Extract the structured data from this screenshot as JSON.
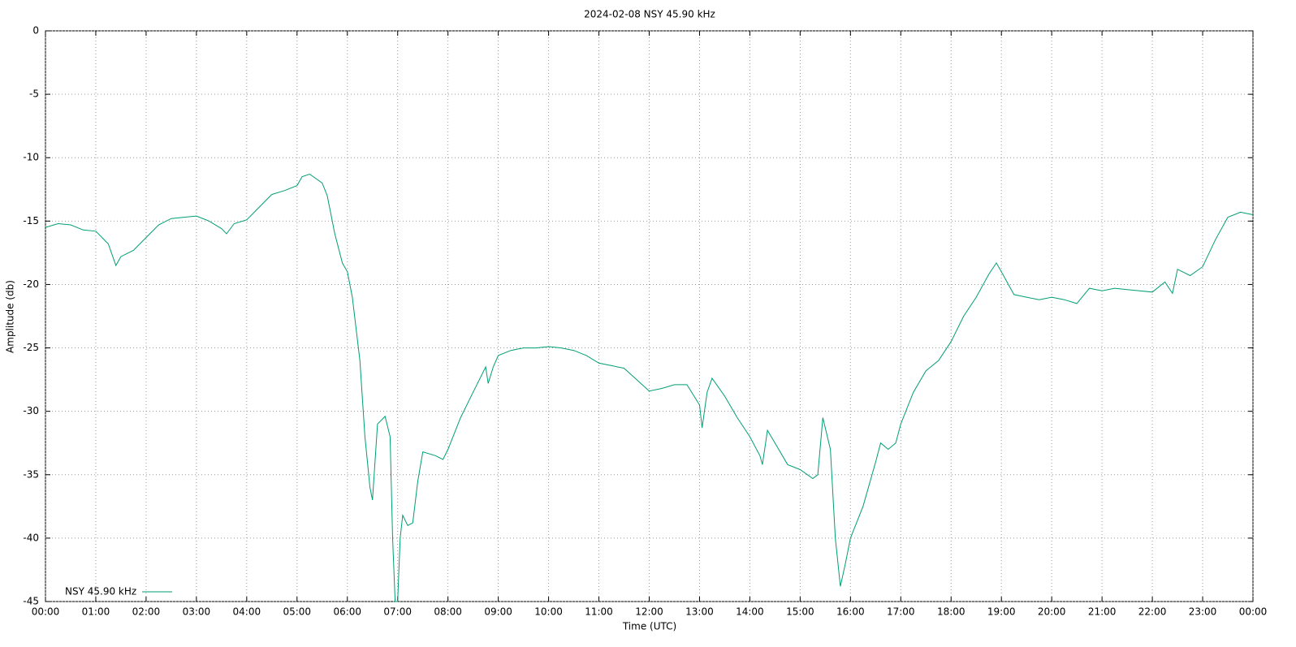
{
  "chart_data": {
    "type": "line",
    "title": "2024-02-08 NSY 45.90 kHz",
    "x_label": "Time (UTC)",
    "y_label": "Amplitude (db)",
    "x": [
      0,
      0.25,
      0.5,
      0.75,
      1.0,
      1.25,
      1.4,
      1.5,
      1.75,
      2.0,
      2.25,
      2.5,
      2.75,
      3.0,
      3.25,
      3.5,
      3.6,
      3.75,
      4.0,
      4.25,
      4.5,
      4.75,
      5.0,
      5.1,
      5.25,
      5.5,
      5.6,
      5.75,
      5.9,
      6.0,
      6.1,
      6.25,
      6.35,
      6.45,
      6.5,
      6.6,
      6.75,
      6.85,
      6.9,
      6.95,
      7.0,
      7.05,
      7.1,
      7.2,
      7.3,
      7.4,
      7.5,
      7.75,
      7.9,
      8.0,
      8.25,
      8.5,
      8.75,
      8.8,
      8.9,
      9.0,
      9.25,
      9.5,
      9.75,
      10.0,
      10.25,
      10.5,
      10.75,
      11.0,
      11.25,
      11.5,
      11.75,
      12.0,
      12.25,
      12.5,
      12.75,
      13.0,
      13.05,
      13.15,
      13.25,
      13.5,
      13.75,
      14.0,
      14.2,
      14.25,
      14.35,
      14.5,
      14.75,
      15.0,
      15.25,
      15.35,
      15.45,
      15.6,
      15.7,
      15.8,
      15.9,
      16.0,
      16.25,
      16.5,
      16.6,
      16.75,
      16.9,
      17.0,
      17.25,
      17.5,
      17.75,
      18.0,
      18.25,
      18.5,
      18.75,
      18.9,
      19.0,
      19.25,
      19.5,
      19.75,
      20.0,
      20.25,
      20.5,
      20.75,
      21.0,
      21.25,
      21.5,
      21.75,
      22.0,
      22.25,
      22.4,
      22.5,
      22.75,
      23.0,
      23.25,
      23.5,
      23.75,
      24.0
    ],
    "series": [
      {
        "name": "NSY 45.90 kHz",
        "color": "#009e73",
        "values": [
          -15.5,
          -15.2,
          -15.3,
          -15.7,
          -15.8,
          -16.8,
          -18.5,
          -17.8,
          -17.3,
          -16.3,
          -15.3,
          -14.8,
          -14.7,
          -14.6,
          -15.0,
          -15.6,
          -16.0,
          -15.2,
          -14.9,
          -13.9,
          -12.9,
          -12.6,
          -12.2,
          -11.5,
          -11.3,
          -12.0,
          -13.0,
          -16.0,
          -18.3,
          -19.0,
          -21.0,
          -26.0,
          -32.0,
          -36.0,
          -37.0,
          -31.0,
          -30.4,
          -32.0,
          -40.0,
          -45.0,
          -45.0,
          -40.0,
          -38.2,
          -39.0,
          -38.8,
          -35.5,
          -33.2,
          -33.5,
          -33.8,
          -33.0,
          -30.5,
          -28.5,
          -26.5,
          -27.8,
          -26.5,
          -25.6,
          -25.2,
          -25.0,
          -25.0,
          -24.9,
          -25.0,
          -25.2,
          -25.6,
          -26.2,
          -26.4,
          -26.6,
          -27.5,
          -28.4,
          -28.2,
          -27.9,
          -27.9,
          -29.5,
          -31.3,
          -28.5,
          -27.4,
          -28.8,
          -30.5,
          -32.0,
          -33.5,
          -34.2,
          -31.5,
          -32.5,
          -34.2,
          -34.6,
          -35.3,
          -35.0,
          -30.5,
          -33.0,
          -40.0,
          -43.8,
          -42.0,
          -40.0,
          -37.5,
          -34.0,
          -32.5,
          -33.0,
          -32.5,
          -31.0,
          -28.5,
          -26.8,
          -26.0,
          -24.5,
          -22.5,
          -21.0,
          -19.2,
          -18.3,
          -19.0,
          -20.8,
          -21.0,
          -21.2,
          -21.0,
          -21.2,
          -21.5,
          -20.3,
          -20.5,
          -20.3,
          -20.4,
          -20.5,
          -20.6,
          -19.8,
          -20.7,
          -18.8,
          -19.3,
          -18.6,
          -16.5,
          -14.7,
          -14.3,
          -14.5
        ]
      }
    ],
    "xlim": [
      0,
      24
    ],
    "xticks": [
      {
        "value": 0,
        "label": "00:00"
      },
      {
        "value": 1,
        "label": "01:00"
      },
      {
        "value": 2,
        "label": "02:00"
      },
      {
        "value": 3,
        "label": "03:00"
      },
      {
        "value": 4,
        "label": "04:00"
      },
      {
        "value": 5,
        "label": "05:00"
      },
      {
        "value": 6,
        "label": "06:00"
      },
      {
        "value": 7,
        "label": "07:00"
      },
      {
        "value": 8,
        "label": "08:00"
      },
      {
        "value": 9,
        "label": "09:00"
      },
      {
        "value": 10,
        "label": "10:00"
      },
      {
        "value": 11,
        "label": "11:00"
      },
      {
        "value": 12,
        "label": "12:00"
      },
      {
        "value": 13,
        "label": "13:00"
      },
      {
        "value": 14,
        "label": "14:00"
      },
      {
        "value": 15,
        "label": "15:00"
      },
      {
        "value": 16,
        "label": "16:00"
      },
      {
        "value": 17,
        "label": "17:00"
      },
      {
        "value": 18,
        "label": "18:00"
      },
      {
        "value": 19,
        "label": "19:00"
      },
      {
        "value": 20,
        "label": "20:00"
      },
      {
        "value": 21,
        "label": "21:00"
      },
      {
        "value": 22,
        "label": "22:00"
      },
      {
        "value": 23,
        "label": "23:00"
      },
      {
        "value": 24,
        "label": "00:00"
      }
    ],
    "ylim": [
      -45,
      0
    ],
    "yticks": [
      0,
      -5,
      -10,
      -15,
      -20,
      -25,
      -30,
      -35,
      -40,
      -45
    ],
    "grid": true,
    "legend": "bottom-left"
  }
}
